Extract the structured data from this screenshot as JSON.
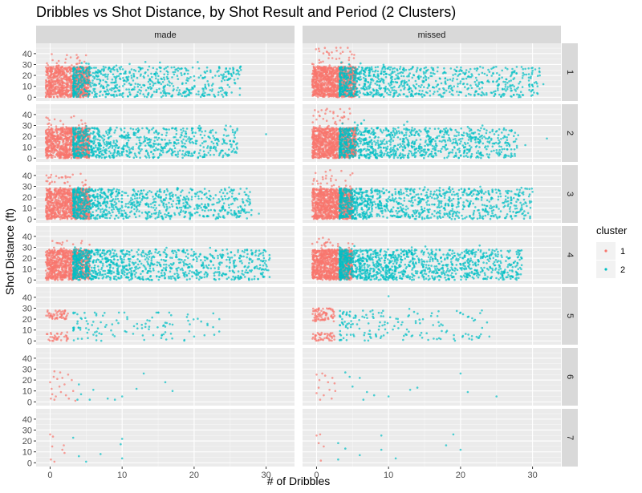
{
  "chart_data": {
    "type": "scatter",
    "title": "Dribbles vs Shot Distance, by Shot Result and Period (2 Clusters)",
    "xlabel": "# of Dribbles",
    "ylabel": "Shot Distance (ft)",
    "xlim": [
      -1.5,
      33.5
    ],
    "ylim": [
      -2,
      48
    ],
    "x_ticks": [
      0,
      10,
      20,
      30
    ],
    "y_ticks": [
      0,
      10,
      20,
      30,
      40
    ],
    "facet_columns": [
      "made",
      "missed"
    ],
    "facet_rows": [
      "1",
      "2",
      "3",
      "4",
      "5",
      "6",
      "7"
    ],
    "legend": {
      "title": "cluster",
      "position": "right",
      "entries": [
        {
          "label": "1",
          "color": "#F8766D"
        },
        {
          "label": "2",
          "color": "#00BFC4"
        }
      ]
    },
    "grid": true,
    "panel_background": "#EBEBEB",
    "strip_background": "#D9D9D9",
    "point_alpha": 0.7,
    "panels": [
      {
        "col": "made",
        "row": "1",
        "cluster1": {
          "n": 900,
          "x_max": 5.5,
          "y_range": [
            0,
            40
          ]
        },
        "cluster2": {
          "n": 700,
          "x_max": 26.5,
          "y_range": [
            0,
            35
          ],
          "outliers": [
            [
              26.5,
              25
            ],
            [
              24,
              18
            ],
            [
              22,
              12
            ],
            [
              19,
              8
            ],
            [
              15,
              16
            ],
            [
              25.5,
              22
            ]
          ]
        }
      },
      {
        "col": "missed",
        "row": "1",
        "cluster1": {
          "n": 1100,
          "x_max": 5.5,
          "y_range": [
            0,
            46
          ]
        },
        "cluster2": {
          "n": 900,
          "x_max": 31,
          "y_range": [
            0,
            32
          ],
          "outliers": [
            [
              29,
              26
            ],
            [
              31,
              20
            ],
            [
              31.5,
              12
            ],
            [
              27,
              8
            ],
            [
              30,
              2
            ],
            [
              22,
              14
            ]
          ]
        }
      },
      {
        "col": "made",
        "row": "2",
        "cluster1": {
          "n": 900,
          "x_max": 5.5,
          "y_range": [
            0,
            40
          ]
        },
        "cluster2": {
          "n": 800,
          "x_max": 26,
          "y_range": [
            0,
            30
          ],
          "outliers": [
            [
              30,
              22
            ],
            [
              26,
              27
            ],
            [
              25,
              16
            ],
            [
              23,
              10
            ],
            [
              22,
              5
            ],
            [
              20,
              20
            ]
          ]
        }
      },
      {
        "col": "missed",
        "row": "2",
        "cluster1": {
          "n": 1100,
          "x_max": 5.5,
          "y_range": [
            0,
            46
          ]
        },
        "cluster2": {
          "n": 1000,
          "x_max": 28,
          "y_range": [
            0,
            35
          ],
          "outliers": [
            [
              32,
              18
            ],
            [
              29,
              12
            ],
            [
              28,
              21
            ],
            [
              26,
              26
            ],
            [
              25,
              5
            ],
            [
              24,
              14
            ]
          ]
        }
      },
      {
        "col": "made",
        "row": "3",
        "cluster1": {
          "n": 950,
          "x_max": 5.5,
          "y_range": [
            0,
            42
          ]
        },
        "cluster2": {
          "n": 900,
          "x_max": 28,
          "y_range": [
            0,
            30
          ],
          "outliers": [
            [
              29,
              5
            ],
            [
              26,
              18
            ],
            [
              24,
              12
            ],
            [
              23,
              22
            ],
            [
              26,
              3
            ],
            [
              22,
              8
            ]
          ]
        }
      },
      {
        "col": "missed",
        "row": "3",
        "cluster1": {
          "n": 1100,
          "x_max": 5,
          "y_range": [
            0,
            45
          ]
        },
        "cluster2": {
          "n": 1000,
          "x_max": 30,
          "y_range": [
            0,
            30
          ],
          "outliers": [
            [
              30,
              25
            ],
            [
              29,
              28
            ],
            [
              27,
              20
            ],
            [
              26,
              11
            ],
            [
              27,
              3
            ],
            [
              24,
              16
            ]
          ]
        }
      },
      {
        "col": "made",
        "row": "4",
        "cluster1": {
          "n": 900,
          "x_max": 5.5,
          "y_range": [
            0,
            36
          ]
        },
        "cluster2": {
          "n": 1000,
          "x_max": 30.5,
          "y_range": [
            0,
            30
          ],
          "outliers": [
            [
              30.5,
              20
            ],
            [
              28,
              24
            ],
            [
              25,
              16
            ],
            [
              24,
              6
            ],
            [
              27,
              12
            ],
            [
              23,
              27
            ]
          ]
        }
      },
      {
        "col": "missed",
        "row": "4",
        "cluster1": {
          "n": 1000,
          "x_max": 5,
          "y_range": [
            0,
            40
          ]
        },
        "cluster2": {
          "n": 1200,
          "x_max": 28.5,
          "y_range": [
            0,
            32
          ],
          "outliers": [
            [
              28.5,
              20
            ],
            [
              28,
              10
            ],
            [
              26,
              6
            ],
            [
              24,
              22
            ],
            [
              25,
              28
            ],
            [
              22,
              15
            ]
          ]
        }
      },
      {
        "col": "made",
        "row": "5",
        "cluster1": {
          "n": 90,
          "x_max": 2.5,
          "y_range": [
            0,
            28
          ],
          "bands": [
            [
              20,
              28
            ],
            [
              0,
              8
            ]
          ]
        },
        "cluster2": {
          "n": 110,
          "x_max": 23.5,
          "y_range": [
            0,
            26
          ],
          "outliers": [
            [
              23.5,
              20
            ],
            [
              19,
              22
            ],
            [
              20,
              4
            ],
            [
              16,
              8
            ],
            [
              17,
              15
            ],
            [
              15,
              26
            ]
          ]
        }
      },
      {
        "col": "missed",
        "row": "5",
        "cluster1": {
          "n": 130,
          "x_max": 2.5,
          "y_range": [
            0,
            40
          ],
          "bands": [
            [
              18,
              30
            ],
            [
              0,
              8
            ]
          ]
        },
        "cluster2": {
          "n": 160,
          "x_max": 24,
          "y_range": [
            0,
            30
          ],
          "outliers": [
            [
              24,
              4
            ],
            [
              23,
              12
            ],
            [
              21,
              22
            ],
            [
              20,
              26
            ],
            [
              10,
              41
            ],
            [
              18,
              8
            ]
          ]
        }
      },
      {
        "col": "made",
        "row": "6",
        "cluster1": [
          [
            0.1,
            3
          ],
          [
            0.6,
            28
          ],
          [
            0.5,
            23
          ],
          [
            1,
            21
          ],
          [
            2.5,
            25
          ],
          [
            3,
            20
          ],
          [
            0.2,
            12
          ],
          [
            1.3,
            14
          ],
          [
            2.2,
            6
          ],
          [
            0.6,
            2
          ],
          [
            1.5,
            9
          ],
          [
            2.6,
            3
          ],
          [
            3.5,
            1
          ],
          [
            0,
            18
          ],
          [
            1.4,
            27
          ],
          [
            0.3,
            7
          ],
          [
            2,
            16
          ],
          [
            0.8,
            5
          ],
          [
            1.7,
            22
          ],
          [
            3.2,
            10
          ]
        ],
        "cluster2": [
          [
            4,
            16
          ],
          [
            4.3,
            7
          ],
          [
            3.8,
            2
          ],
          [
            5.5,
            2
          ],
          [
            8,
            3
          ],
          [
            10,
            5
          ],
          [
            12,
            12
          ],
          [
            13,
            26
          ],
          [
            16,
            18
          ],
          [
            17,
            10
          ],
          [
            9,
            2
          ],
          [
            6,
            11
          ]
        ]
      },
      {
        "col": "missed",
        "row": "6",
        "cluster1": [
          [
            0,
            25
          ],
          [
            0.4,
            20
          ],
          [
            1.2,
            24
          ],
          [
            2.2,
            22
          ],
          [
            2.5,
            17
          ],
          [
            2.6,
            10
          ],
          [
            0.3,
            13
          ],
          [
            1,
            6
          ],
          [
            0.5,
            2
          ],
          [
            1.6,
            18
          ],
          [
            2.1,
            3
          ],
          [
            0,
            8
          ],
          [
            0.8,
            26
          ],
          [
            1.8,
            11
          ]
        ],
        "cluster2": [
          [
            4,
            27
          ],
          [
            4.6,
            23
          ],
          [
            6,
            22
          ],
          [
            5,
            14
          ],
          [
            7,
            9
          ],
          [
            8,
            6
          ],
          [
            10,
            5
          ],
          [
            13,
            11
          ],
          [
            14,
            13
          ],
          [
            20,
            26
          ],
          [
            21,
            9
          ],
          [
            25,
            5
          ],
          [
            6.5,
            2
          ]
        ]
      },
      {
        "col": "made",
        "row": "7",
        "cluster1": [
          [
            0,
            26
          ],
          [
            0.4,
            24
          ],
          [
            0.3,
            15
          ],
          [
            0.1,
            3
          ],
          [
            1.7,
            12
          ],
          [
            1.9,
            16
          ],
          [
            2,
            9
          ],
          [
            0.6,
            1
          ]
        ],
        "cluster2": [
          [
            3.2,
            23
          ],
          [
            10,
            22
          ],
          [
            9.8,
            17
          ],
          [
            7,
            8
          ],
          [
            4,
            6
          ],
          [
            10,
            4
          ],
          [
            5,
            1
          ]
        ]
      },
      {
        "col": "missed",
        "row": "7",
        "cluster1": [
          [
            0,
            25
          ],
          [
            0.5,
            26
          ],
          [
            0.3,
            18
          ],
          [
            1,
            15
          ],
          [
            0.6,
            2
          ]
        ],
        "cluster2": [
          [
            3,
            18
          ],
          [
            4,
            13
          ],
          [
            9,
            25
          ],
          [
            9,
            12
          ],
          [
            11,
            4
          ],
          [
            19,
            26
          ],
          [
            18,
            16
          ],
          [
            20,
            12
          ],
          [
            6,
            7
          ],
          [
            3,
            3
          ]
        ]
      }
    ]
  }
}
